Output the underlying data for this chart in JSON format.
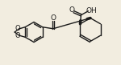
{
  "bg_color": "#f2ede0",
  "line_color": "#1a1a1a",
  "lw": 1.0,
  "figsize": [
    1.5,
    0.81
  ],
  "dpi": 100,
  "xlim": [
    0,
    150
  ],
  "ylim": [
    0,
    81
  ]
}
